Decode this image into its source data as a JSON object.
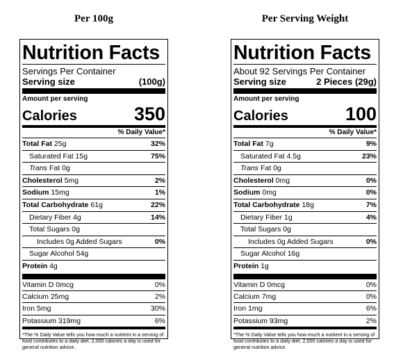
{
  "panels": [
    {
      "heading": "Per 100g",
      "title": "Nutrition Facts",
      "servings_per_container": "Servings Per Container",
      "serving_size_label": "Serving size",
      "serving_size_value": "(100g)",
      "amount_per_serving": "Amount per serving",
      "calories_label": "Calories",
      "calories_value": "350",
      "dv_header": "% Daily Value*",
      "nutrients": [
        {
          "name_bold": "Total Fat",
          "name_rest": " 25g",
          "pct": "32%"
        },
        {
          "name_bold": "",
          "name_rest": "Saturated Fat 15g",
          "pct": "75%"
        },
        {
          "name_bold": "",
          "name_italic": "Trans",
          "name_rest": " Fat 0g",
          "pct": ""
        },
        {
          "name_bold": "Cholesterol",
          "name_rest": " 5mg",
          "pct": "2%"
        },
        {
          "name_bold": "Sodium",
          "name_rest": " 15mg",
          "pct": "1%"
        },
        {
          "name_bold": "Total Carbohydrate",
          "name_rest": " 61g",
          "pct": "22%"
        },
        {
          "name_bold": "",
          "name_rest": "Dietary Fiber 4g",
          "pct": "14%"
        },
        {
          "name_bold": "",
          "name_rest": "Total Sugars 0g",
          "pct": ""
        },
        {
          "name_bold": "",
          "name_rest": "Includes 0g Added Sugars",
          "pct": "0%"
        },
        {
          "name_bold": "",
          "name_rest": "Sugar Alcohol 54g",
          "pct": ""
        },
        {
          "name_bold": "Protein",
          "name_rest": " 4g",
          "pct": ""
        }
      ],
      "vitamins": [
        {
          "name": "Vitamin D 0mcg",
          "pct": "0%"
        },
        {
          "name": "Calcium 25mg",
          "pct": "2%"
        },
        {
          "name": "Iron 5mg",
          "pct": "30%"
        },
        {
          "name": "Potassium 319mg",
          "pct": "6%"
        }
      ],
      "footnote": "*The % Daily Value tells you how much a nutrient in a serving of food contributes to a daily diet. 2,000 calories a day is used for general nutrition advice."
    },
    {
      "heading": "Per Serving Weight",
      "title": "Nutrition Facts",
      "servings_per_container": "About 92 Servings Per Container",
      "serving_size_label": "Serving size",
      "serving_size_value": "2 Pieces (29g)",
      "amount_per_serving": "Amount per serving",
      "calories_label": "Calories",
      "calories_value": "100",
      "dv_header": "% Daily Value*",
      "nutrients": [
        {
          "name_bold": "Total Fat",
          "name_rest": " 7g",
          "pct": "9%"
        },
        {
          "name_bold": "",
          "name_rest": "Saturated Fat 4.5g",
          "pct": "23%"
        },
        {
          "name_bold": "",
          "name_italic": "Trans",
          "name_rest": " Fat 0g",
          "pct": ""
        },
        {
          "name_bold": "Cholesterol",
          "name_rest": " 0mg",
          "pct": "0%"
        },
        {
          "name_bold": "Sodium",
          "name_rest": " 0mg",
          "pct": "0%"
        },
        {
          "name_bold": "Total Carbohydrate",
          "name_rest": " 18g",
          "pct": "7%"
        },
        {
          "name_bold": "",
          "name_rest": "Dietary Fiber 1g",
          "pct": "4%"
        },
        {
          "name_bold": "",
          "name_rest": "Total Sugars 0g",
          "pct": ""
        },
        {
          "name_bold": "",
          "name_rest": "Includes 0g Added Sugars",
          "pct": "0%"
        },
        {
          "name_bold": "",
          "name_rest": "Sugar Alcohol 16g",
          "pct": ""
        },
        {
          "name_bold": "Protein",
          "name_rest": " 1g",
          "pct": ""
        }
      ],
      "vitamins": [
        {
          "name": "Vitamin D 0mcg",
          "pct": "0%"
        },
        {
          "name": "Calcium 7mg",
          "pct": "0%"
        },
        {
          "name": "Iron 1mg",
          "pct": "6%"
        },
        {
          "name": "Potassium 93mg",
          "pct": "2%"
        }
      ],
      "footnote": "*The % Daily Value tells you how much a nutrient in a serving of food contributes to a daily diet. 2,000 calories a day is used for general nutrition advice."
    }
  ]
}
